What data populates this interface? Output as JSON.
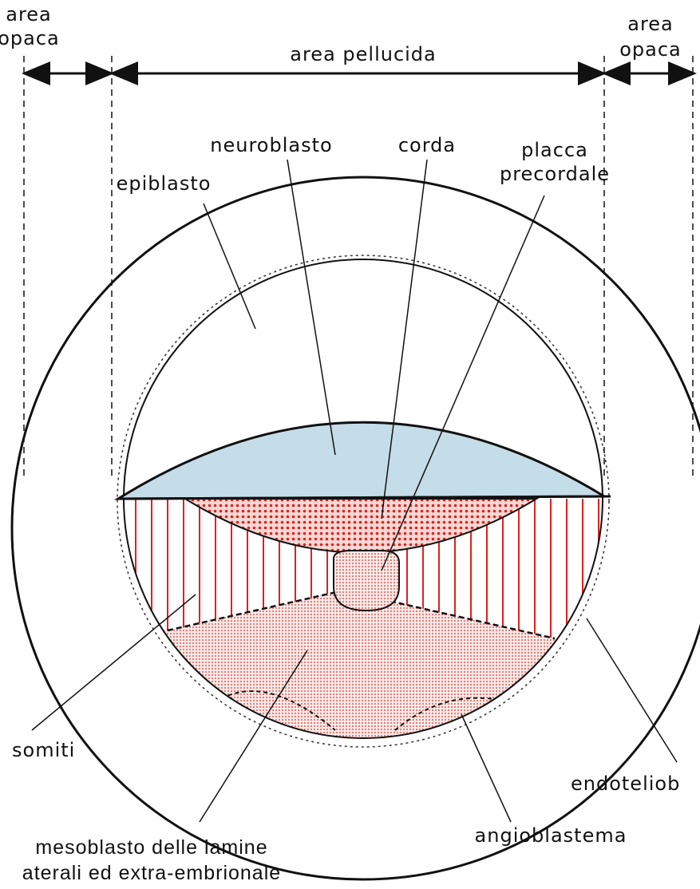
{
  "labels": {
    "area_opaca_left": [
      "area",
      "opaca"
    ],
    "area_pellucida": "area pellucida",
    "area_opaca_right": [
      "area",
      "opaca"
    ],
    "neuroblasto": "neuroblasto",
    "corda": "corda",
    "placca_precordale": [
      "placca",
      "precordale"
    ],
    "epiblasto": "epiblasto",
    "somiti": "somiti",
    "endotelioblasto": "endoteliob",
    "angioblastema": "angioblastema",
    "mesoblasto": [
      "mesoblasto delle lamine",
      "aterali ed extra-embrionale"
    ]
  }
}
